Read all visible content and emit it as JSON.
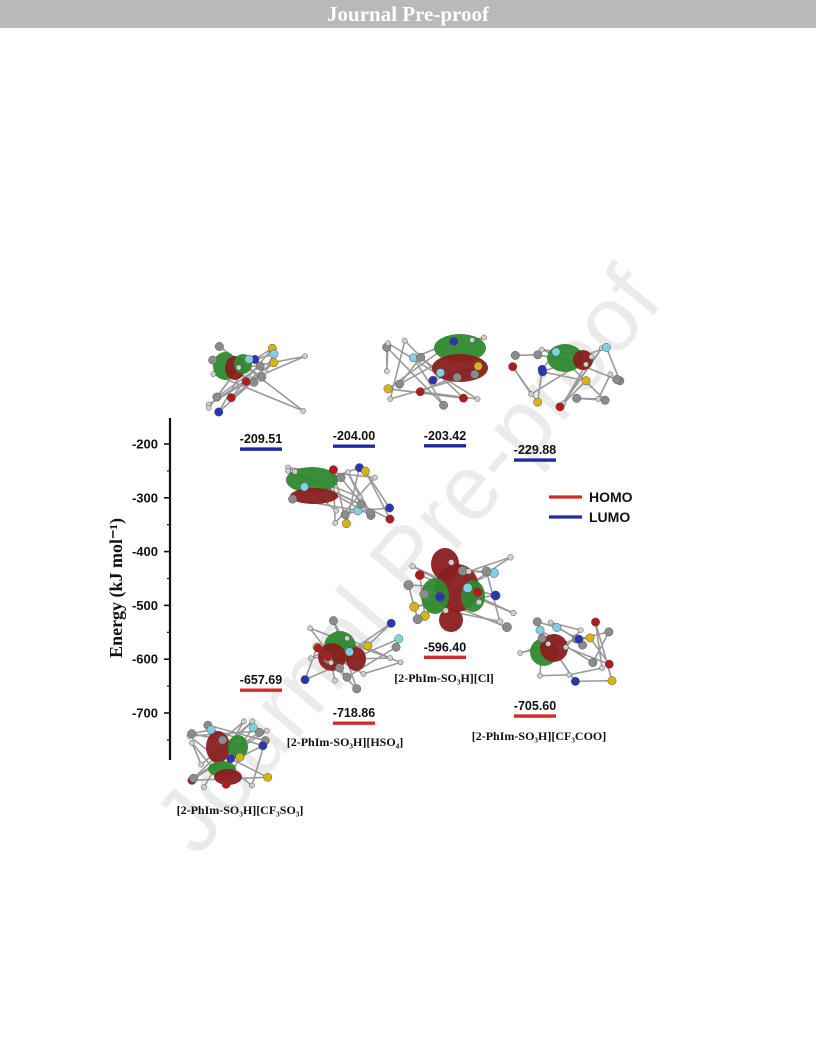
{
  "header": {
    "title": "Journal Pre-proof"
  },
  "watermark": {
    "text": "Journal Pre-proof"
  },
  "colors": {
    "homo": "#d42a2a",
    "lumo": "#1f2a9c",
    "orbital_positive": "#2f8a2f",
    "orbital_negative": "#8a1f1f",
    "header_bar": "#b9b9b9"
  },
  "chart_data": {
    "type": "energy-level-diagram",
    "ylabel": "Energy (kJ mol⁻¹)",
    "ylim": [
      -780,
      -160
    ],
    "yticks": [
      -200,
      -300,
      -400,
      -500,
      -600,
      -700
    ],
    "legend": {
      "placement": "right",
      "entries": [
        "HOMO",
        "LUMO"
      ]
    },
    "series": [
      {
        "name": "HOMO",
        "values": [
          -657.69,
          -718.86,
          -596.4,
          -705.6
        ]
      },
      {
        "name": "LUMO",
        "values": [
          -209.51,
          -204.0,
          -203.42,
          -229.88
        ]
      }
    ],
    "categories": [
      "[2-PhIm-SO₃H][CF₃SO₃]",
      "[2-PhIm-SO₃H][HSO₄]",
      "[2-PhIm-SO₃H][Cl]",
      "[2-PhIm-SO₃H][CF₃COO]"
    ]
  }
}
